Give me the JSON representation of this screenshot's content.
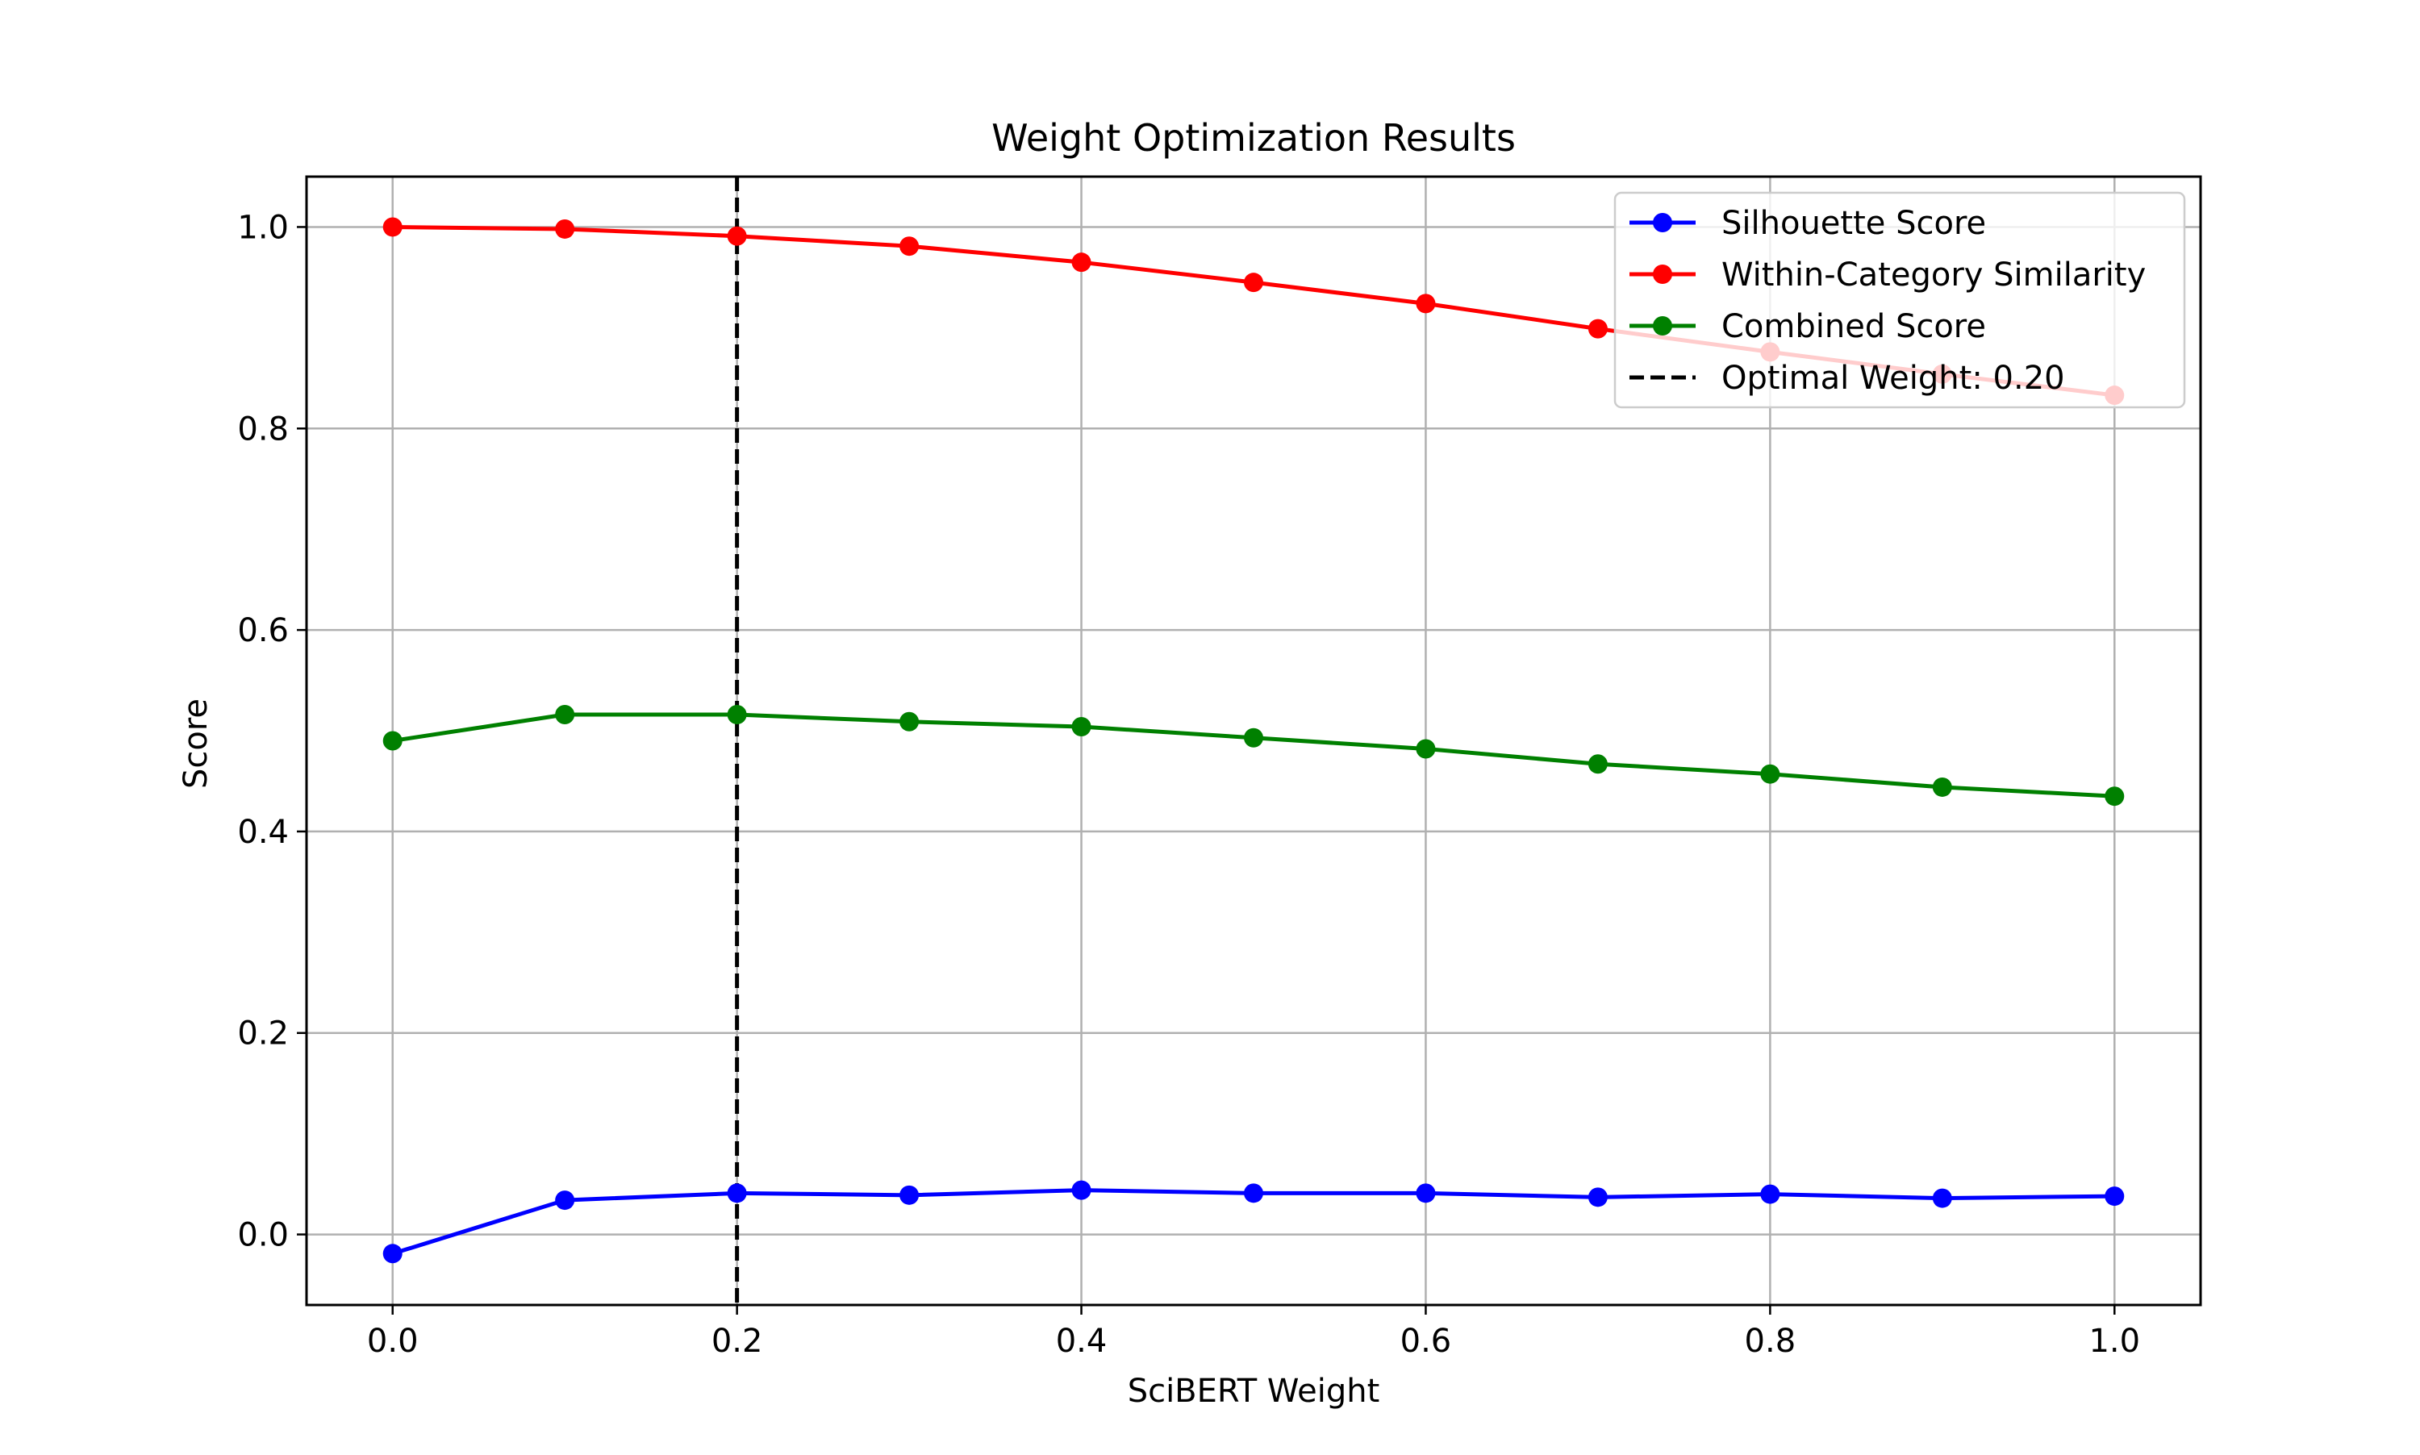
{
  "chart_data": {
    "type": "line",
    "title": "Weight Optimization Results",
    "xlabel": "SciBERT Weight",
    "ylabel": "Score",
    "xlim": [
      -0.05,
      1.05
    ],
    "ylim": [
      -0.07,
      1.05
    ],
    "xticks": [
      0.0,
      0.2,
      0.4,
      0.6,
      0.8,
      1.0
    ],
    "xtick_labels": [
      "0.0",
      "0.2",
      "0.4",
      "0.6",
      "0.8",
      "1.0"
    ],
    "yticks": [
      0.0,
      0.2,
      0.4,
      0.6,
      0.8,
      1.0
    ],
    "ytick_labels": [
      "0.0",
      "0.2",
      "0.4",
      "0.6",
      "0.8",
      "1.0"
    ],
    "grid": true,
    "legend_position": "top-right",
    "x": [
      0.0,
      0.1,
      0.2,
      0.3,
      0.4,
      0.5,
      0.6,
      0.7,
      0.8,
      0.9,
      1.0
    ],
    "series": [
      {
        "name": "Silhouette Score",
        "color": "#0000ff",
        "values": [
          -0.019,
          0.034,
          0.041,
          0.039,
          0.044,
          0.041,
          0.041,
          0.037,
          0.04,
          0.036,
          0.038
        ]
      },
      {
        "name": "Within-Category Similarity",
        "color": "#ff0000",
        "values": [
          1.0,
          0.998,
          0.991,
          0.981,
          0.965,
          0.945,
          0.924,
          0.899,
          0.876,
          0.854,
          0.833
        ]
      },
      {
        "name": "Combined Score",
        "color": "#008000",
        "values": [
          0.49,
          0.516,
          0.516,
          0.509,
          0.504,
          0.493,
          0.482,
          0.467,
          0.457,
          0.444,
          0.435
        ]
      }
    ],
    "vline": {
      "x": 0.2,
      "label": "Optimal Weight: 0.20",
      "color": "#000000",
      "style": "dashed"
    }
  }
}
